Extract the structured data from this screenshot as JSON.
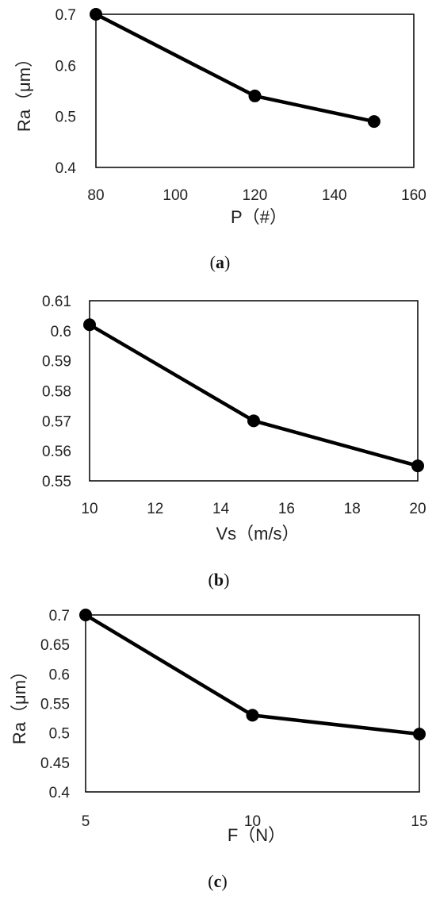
{
  "chart_data": [
    {
      "type": "line",
      "x": [
        80,
        120,
        150
      ],
      "y": [
        0.7,
        0.54,
        0.49
      ],
      "xlabel": "P（#）",
      "ylabel": "Ra（μm）",
      "xlim": [
        80,
        160
      ],
      "ylim": [
        0.4,
        0.7
      ],
      "xticks": [
        "80",
        "100",
        "120",
        "140",
        "160"
      ],
      "yticks": [
        "0.4",
        "0.5",
        "0.6",
        "0.7"
      ],
      "caption": {
        "open": "(",
        "letter": "a",
        "close": ")"
      },
      "line_color": "#000000",
      "grid": false
    },
    {
      "type": "line",
      "x": [
        10,
        15,
        20
      ],
      "y": [
        0.602,
        0.57,
        0.555
      ],
      "xlabel": "Vs（m/s）",
      "ylabel": "",
      "xlim": [
        10,
        20
      ],
      "ylim": [
        0.55,
        0.61
      ],
      "xticks": [
        "10",
        "12",
        "14",
        "16",
        "18",
        "20"
      ],
      "yticks": [
        "0.55",
        "0.56",
        "0.57",
        "0.58",
        "0.59",
        "0.6",
        "0.61"
      ],
      "caption": {
        "open": "(",
        "letter": "b",
        "close": ")"
      },
      "line_color": "#000000",
      "grid": false
    },
    {
      "type": "line",
      "x": [
        5,
        10,
        15
      ],
      "y": [
        0.7,
        0.53,
        0.498
      ],
      "xlabel": "F（N）",
      "ylabel": "Ra（μm）",
      "xlim": [
        5,
        15
      ],
      "ylim": [
        0.4,
        0.7
      ],
      "xticks": [
        "5",
        "10",
        "15"
      ],
      "yticks": [
        "0.4",
        "0.45",
        "0.5",
        "0.55",
        "0.6",
        "0.65",
        "0.7"
      ],
      "caption": {
        "open": "(",
        "letter": "c",
        "close": ")"
      },
      "line_color": "#000000",
      "grid": false
    }
  ]
}
